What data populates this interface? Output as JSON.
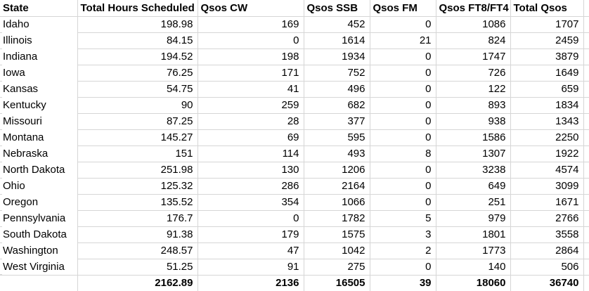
{
  "app": {
    "kind": "spreadsheet-grid",
    "description": "Excel-style table of ham radio QSO party results by state"
  },
  "colors": {
    "grid_line": "#d6d6d6",
    "text": "#000000",
    "background": "#ffffff"
  },
  "table": {
    "columns": [
      "State",
      "Total Hours Scheduled",
      "Qsos CW",
      "Qsos SSB",
      "Qsos FM",
      "Qsos FT8/FT4",
      "Total Qsos"
    ],
    "rows": [
      {
        "state": "Idaho",
        "values": [
          "198.98",
          "169",
          "452",
          "0",
          "1086",
          "1707"
        ]
      },
      {
        "state": "Illinois",
        "values": [
          "84.15",
          "0",
          "1614",
          "21",
          "824",
          "2459"
        ]
      },
      {
        "state": "Indiana",
        "values": [
          "194.52",
          "198",
          "1934",
          "0",
          "1747",
          "3879"
        ]
      },
      {
        "state": "Iowa",
        "values": [
          "76.25",
          "171",
          "752",
          "0",
          "726",
          "1649"
        ]
      },
      {
        "state": "Kansas",
        "values": [
          "54.75",
          "41",
          "496",
          "0",
          "122",
          "659"
        ]
      },
      {
        "state": "Kentucky",
        "values": [
          "90",
          "259",
          "682",
          "0",
          "893",
          "1834"
        ]
      },
      {
        "state": "Missouri",
        "values": [
          "87.25",
          "28",
          "377",
          "0",
          "938",
          "1343"
        ]
      },
      {
        "state": "Montana",
        "values": [
          "145.27",
          "69",
          "595",
          "0",
          "1586",
          "2250"
        ]
      },
      {
        "state": "Nebraska",
        "values": [
          "151",
          "114",
          "493",
          "8",
          "1307",
          "1922"
        ]
      },
      {
        "state": "North Dakota",
        "values": [
          "251.98",
          "130",
          "1206",
          "0",
          "3238",
          "4574"
        ]
      },
      {
        "state": "Ohio",
        "values": [
          "125.32",
          "286",
          "2164",
          "0",
          "649",
          "3099"
        ]
      },
      {
        "state": "Oregon",
        "values": [
          "135.52",
          "354",
          "1066",
          "0",
          "251",
          "1671"
        ]
      },
      {
        "state": "Pennsylvania",
        "values": [
          "176.7",
          "0",
          "1782",
          "5",
          "979",
          "2766"
        ]
      },
      {
        "state": "South Dakota",
        "values": [
          "91.38",
          "179",
          "1575",
          "3",
          "1801",
          "3558"
        ]
      },
      {
        "state": "Washington",
        "values": [
          "248.57",
          "47",
          "1042",
          "2",
          "1773",
          "2864"
        ]
      },
      {
        "state": "West Virginia",
        "values": [
          "51.25",
          "91",
          "275",
          "0",
          "140",
          "506"
        ]
      }
    ],
    "totals": {
      "state": "",
      "values": [
        "2162.89",
        "2136",
        "16505",
        "39",
        "18060",
        "36740"
      ]
    }
  }
}
